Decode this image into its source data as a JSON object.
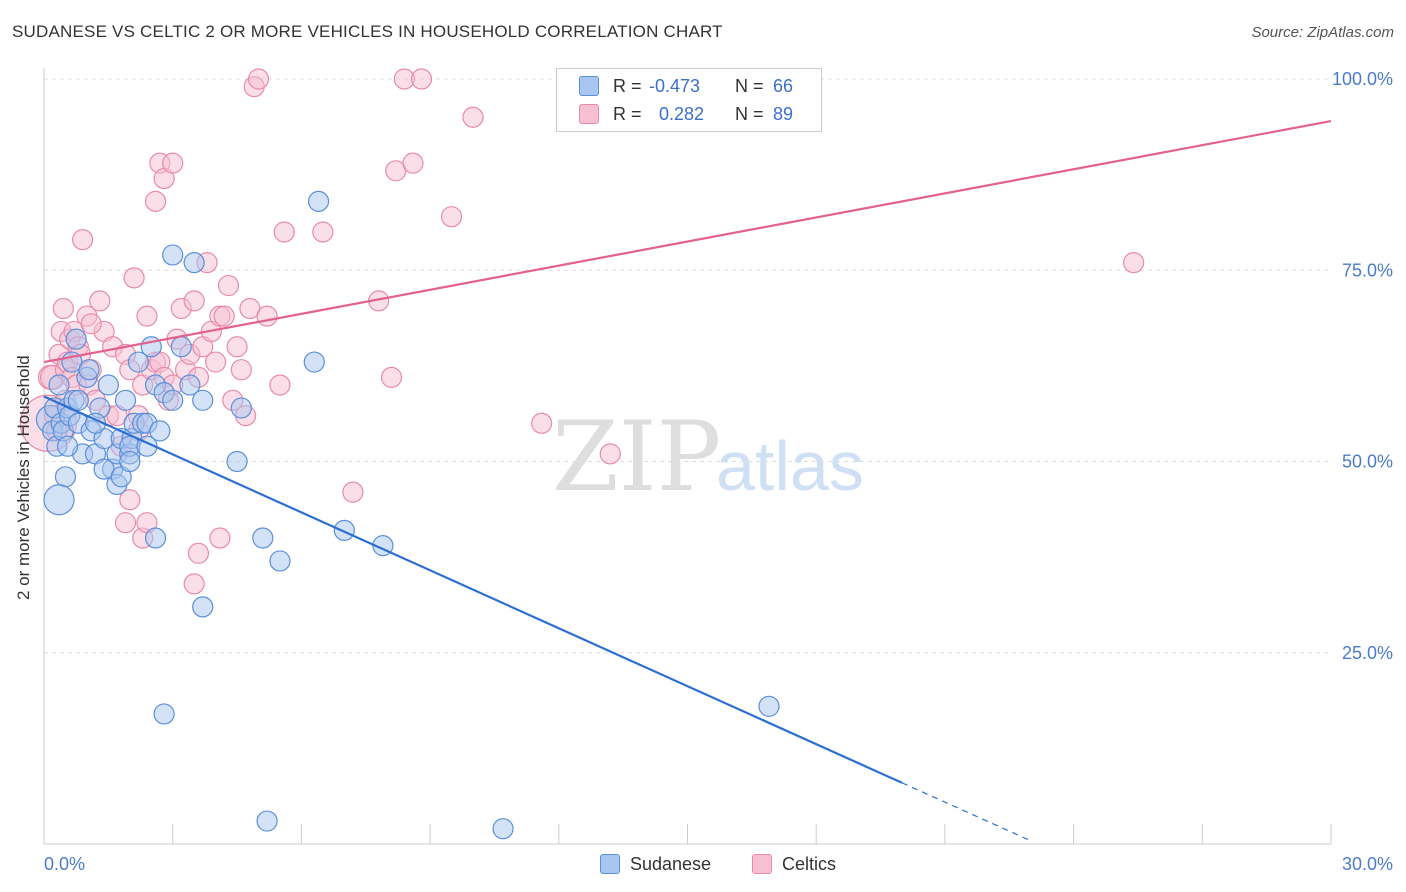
{
  "chart_data": {
    "type": "scatter",
    "title": "SUDANESE VS CELTIC 2 OR MORE VEHICLES IN HOUSEHOLD CORRELATION CHART",
    "source": "Source: ZipAtlas.com",
    "xlabel": "",
    "ylabel": "2 or more Vehicles in Household",
    "xlim": [
      0,
      30
    ],
    "ylim": [
      0,
      100
    ],
    "x_tick_labels": [
      "0.0%",
      "30.0%"
    ],
    "y_tick_labels": [
      "25.0%",
      "50.0%",
      "75.0%",
      "100.0%"
    ],
    "y_tick_values": [
      25,
      50,
      75,
      100
    ],
    "watermark": "ZIPatlas",
    "legend": {
      "r_label": "R =",
      "n_label": "N =",
      "entries": [
        {
          "name": "Sudanese",
          "r": "-0.473",
          "n": "66"
        },
        {
          "name": "Celtics",
          "r": " 0.282",
          "n": "89"
        }
      ]
    },
    "colors": {
      "sudanese_fill": "#a9c6f0",
      "sudanese_stroke": "#5b8fd9",
      "sudanese_line": "#2b6fd2",
      "celtics_fill": "#f6bfd2",
      "celtics_stroke": "#e98aab",
      "celtics_line": "#e2618e",
      "tick": "#4a7cc9"
    },
    "series": [
      {
        "name": "Sudanese",
        "trend": {
          "x0": 0.0,
          "y0": 58.5,
          "x1": 20.0,
          "y1": 8.0,
          "dash_x1": 23.0
        },
        "points": [
          [
            0.15,
            55.5
          ],
          [
            0.2,
            54
          ],
          [
            0.25,
            57
          ],
          [
            0.3,
            52
          ],
          [
            0.35,
            60
          ],
          [
            0.4,
            55
          ],
          [
            0.45,
            54
          ],
          [
            0.5,
            48
          ],
          [
            0.55,
            57
          ],
          [
            0.6,
            56
          ],
          [
            0.65,
            63
          ],
          [
            0.7,
            58
          ],
          [
            0.75,
            66
          ],
          [
            0.8,
            55
          ],
          [
            0.9,
            51
          ],
          [
            1.0,
            61
          ],
          [
            1.05,
            62
          ],
          [
            1.1,
            54
          ],
          [
            1.2,
            51
          ],
          [
            1.3,
            57
          ],
          [
            1.4,
            53
          ],
          [
            1.5,
            60
          ],
          [
            1.6,
            49
          ],
          [
            1.7,
            51
          ],
          [
            1.8,
            53
          ],
          [
            1.9,
            58
          ],
          [
            2.0,
            51
          ],
          [
            2.05,
            53
          ],
          [
            2.1,
            55
          ],
          [
            2.2,
            63
          ],
          [
            2.3,
            55
          ],
          [
            2.4,
            55
          ],
          [
            2.5,
            65
          ],
          [
            2.6,
            60
          ],
          [
            2.7,
            54
          ],
          [
            2.8,
            59
          ],
          [
            3.0,
            77
          ],
          [
            3.2,
            65
          ],
          [
            3.4,
            60
          ],
          [
            3.5,
            76
          ],
          [
            1.4,
            49
          ],
          [
            1.7,
            47
          ],
          [
            2.0,
            52
          ],
          [
            2.4,
            52
          ],
          [
            3.7,
            31
          ],
          [
            4.5,
            50
          ],
          [
            4.6,
            57
          ],
          [
            5.1,
            40
          ],
          [
            5.5,
            37
          ],
          [
            6.3,
            63
          ],
          [
            6.4,
            84
          ],
          [
            7.0,
            41
          ],
          [
            7.9,
            39
          ],
          [
            2.6,
            40
          ],
          [
            2.8,
            17
          ],
          [
            3.7,
            58
          ],
          [
            5.2,
            3
          ],
          [
            10.7,
            2
          ],
          [
            16.9,
            18
          ],
          [
            1.8,
            48
          ],
          [
            0.55,
            52
          ],
          [
            0.35,
            45
          ],
          [
            3.0,
            58
          ],
          [
            2.0,
            50
          ],
          [
            1.2,
            55
          ],
          [
            0.8,
            58
          ]
        ],
        "sizes": [
          14,
          10,
          10,
          10,
          10,
          10,
          10,
          10,
          10,
          10,
          10,
          10,
          10,
          10,
          10,
          10,
          10,
          10,
          10,
          10,
          10,
          10,
          10,
          10,
          10,
          10,
          10,
          10,
          10,
          10,
          10,
          10,
          10,
          10,
          10,
          10,
          10,
          10,
          10,
          10,
          10,
          10,
          10,
          10,
          10,
          10,
          10,
          10,
          10,
          10,
          10,
          10,
          10,
          10,
          10,
          10,
          10,
          10,
          10,
          10,
          10,
          15,
          10,
          10,
          10,
          10
        ]
      },
      {
        "name": "Celtics",
        "trend": {
          "x0": 0.0,
          "y0": 63.0,
          "x1": 30.0,
          "y1": 94.5
        },
        "points": [
          [
            0.1,
            55
          ],
          [
            0.15,
            61
          ],
          [
            0.2,
            61
          ],
          [
            0.25,
            56
          ],
          [
            0.3,
            54
          ],
          [
            0.35,
            64
          ],
          [
            0.4,
            67
          ],
          [
            0.45,
            70
          ],
          [
            0.5,
            62
          ],
          [
            0.55,
            63
          ],
          [
            0.6,
            66
          ],
          [
            0.65,
            61
          ],
          [
            0.7,
            67
          ],
          [
            0.75,
            60
          ],
          [
            0.8,
            65
          ],
          [
            0.85,
            64
          ],
          [
            0.9,
            79
          ],
          [
            1.0,
            69
          ],
          [
            1.05,
            60
          ],
          [
            1.1,
            62
          ],
          [
            1.2,
            58
          ],
          [
            1.3,
            71
          ],
          [
            1.4,
            67
          ],
          [
            1.5,
            56
          ],
          [
            1.6,
            65
          ],
          [
            1.7,
            56
          ],
          [
            1.8,
            52
          ],
          [
            1.9,
            64
          ],
          [
            2.0,
            62
          ],
          [
            2.1,
            74
          ],
          [
            2.2,
            56
          ],
          [
            2.3,
            60
          ],
          [
            2.4,
            69
          ],
          [
            2.5,
            62
          ],
          [
            2.6,
            63
          ],
          [
            2.7,
            63
          ],
          [
            2.8,
            61
          ],
          [
            2.9,
            58
          ],
          [
            3.0,
            60
          ],
          [
            3.1,
            66
          ],
          [
            3.2,
            70
          ],
          [
            3.3,
            62
          ],
          [
            3.4,
            64
          ],
          [
            3.5,
            71
          ],
          [
            3.6,
            61
          ],
          [
            3.7,
            65
          ],
          [
            3.8,
            76
          ],
          [
            3.9,
            67
          ],
          [
            4.0,
            63
          ],
          [
            4.1,
            69
          ],
          [
            4.2,
            69
          ],
          [
            4.3,
            73
          ],
          [
            4.4,
            58
          ],
          [
            4.5,
            65
          ],
          [
            4.6,
            62
          ],
          [
            4.7,
            56
          ],
          [
            4.8,
            70
          ],
          [
            4.9,
            99
          ],
          [
            5.0,
            100
          ],
          [
            5.2,
            69
          ],
          [
            5.5,
            60
          ],
          [
            5.6,
            80
          ],
          [
            2.6,
            84
          ],
          [
            2.7,
            89
          ],
          [
            2.8,
            87
          ],
          [
            3.0,
            89
          ],
          [
            6.5,
            80
          ],
          [
            7.2,
            46
          ],
          [
            7.8,
            71
          ],
          [
            8.1,
            61
          ],
          [
            8.2,
            88
          ],
          [
            8.4,
            100
          ],
          [
            8.6,
            89
          ],
          [
            8.8,
            100
          ],
          [
            9.5,
            82
          ],
          [
            10.0,
            95
          ],
          [
            11.6,
            55
          ],
          [
            13.2,
            51
          ],
          [
            25.4,
            76
          ],
          [
            2.0,
            45
          ],
          [
            2.3,
            40
          ],
          [
            3.5,
            34
          ],
          [
            1.9,
            42
          ],
          [
            2.4,
            42
          ],
          [
            3.6,
            38
          ],
          [
            4.1,
            40
          ],
          [
            2.2,
            54
          ],
          [
            1.1,
            68
          ],
          [
            0.5,
            58
          ]
        ],
        "sizes": [
          28,
          12,
          12,
          10,
          10,
          10,
          10,
          10,
          10,
          10,
          10,
          10,
          10,
          10,
          10,
          10,
          10,
          10,
          10,
          10,
          10,
          10,
          10,
          10,
          10,
          10,
          10,
          10,
          10,
          10,
          10,
          10,
          10,
          10,
          10,
          10,
          10,
          10,
          10,
          10,
          10,
          10,
          10,
          10,
          10,
          10,
          10,
          10,
          10,
          10,
          10,
          10,
          10,
          10,
          10,
          10,
          10,
          10,
          10,
          10,
          10,
          10,
          10,
          10,
          10,
          10,
          10,
          10,
          10,
          10,
          10,
          10,
          10,
          10,
          10,
          10,
          10,
          10,
          10,
          10,
          10,
          10,
          10,
          10,
          10,
          10,
          10,
          10,
          10
        ]
      }
    ]
  }
}
